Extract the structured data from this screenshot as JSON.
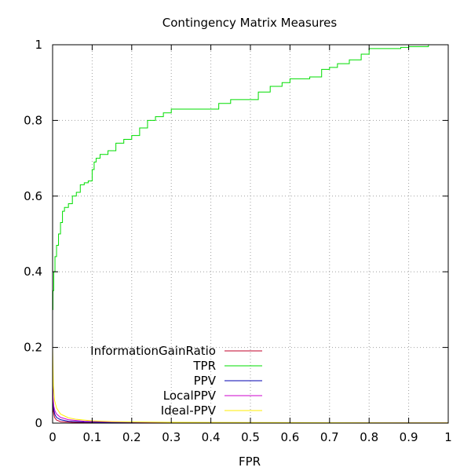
{
  "chart_data": {
    "type": "line",
    "title": "Contingency Matrix Measures",
    "xlabel": "FPR",
    "ylabel": "",
    "xlim": [
      0,
      1
    ],
    "ylim": [
      0,
      1
    ],
    "xticks": [
      0,
      0.1,
      0.2,
      0.3,
      0.4,
      0.5,
      0.6,
      0.7,
      0.8,
      0.9,
      1
    ],
    "xtick_labels": [
      "0",
      "0.1",
      "0.2",
      "0.3",
      "0.4",
      "0.5",
      "0.6",
      "0.7",
      "0.8",
      "0.9",
      "1"
    ],
    "yticks": [
      0,
      0.2,
      0.4,
      0.6,
      0.8,
      1
    ],
    "ytick_labels": [
      "0",
      "0.2",
      "0.4",
      "0.6",
      "0.8",
      "1"
    ],
    "grid": true,
    "legend_position": "bottom-left",
    "series": [
      {
        "name": "InformationGainRatio",
        "color": "#c0002a",
        "x": [
          0,
          0.002,
          0.005,
          0.01,
          0.02,
          0.05,
          0.1,
          0.3,
          0.6,
          1.0
        ],
        "y": [
          0.06,
          0.03,
          0.015,
          0.008,
          0.004,
          0.002,
          0.001,
          0.0005,
          0.0003,
          0.0002
        ]
      },
      {
        "name": "TPR",
        "color": "#00dd00",
        "x": [
          0,
          0.001,
          0.003,
          0.006,
          0.01,
          0.015,
          0.02,
          0.025,
          0.03,
          0.04,
          0.05,
          0.06,
          0.07,
          0.08,
          0.09,
          0.1,
          0.105,
          0.11,
          0.12,
          0.14,
          0.16,
          0.18,
          0.2,
          0.22,
          0.24,
          0.26,
          0.28,
          0.3,
          0.35,
          0.4,
          0.42,
          0.45,
          0.5,
          0.52,
          0.55,
          0.58,
          0.6,
          0.65,
          0.68,
          0.7,
          0.72,
          0.75,
          0.78,
          0.8,
          0.85,
          0.88,
          0.9,
          0.95
        ],
        "y": [
          0.3,
          0.35,
          0.4,
          0.44,
          0.47,
          0.5,
          0.53,
          0.56,
          0.57,
          0.58,
          0.6,
          0.61,
          0.63,
          0.635,
          0.64,
          0.67,
          0.69,
          0.7,
          0.71,
          0.72,
          0.74,
          0.75,
          0.76,
          0.78,
          0.8,
          0.81,
          0.82,
          0.83,
          0.83,
          0.83,
          0.845,
          0.855,
          0.855,
          0.875,
          0.89,
          0.9,
          0.91,
          0.915,
          0.935,
          0.94,
          0.95,
          0.96,
          0.975,
          0.99,
          0.99,
          0.993,
          0.995,
          1.0
        ]
      },
      {
        "name": "PPV",
        "color": "#0000b0",
        "x": [
          0,
          0.001,
          0.003,
          0.006,
          0.01,
          0.02,
          0.04,
          0.08,
          0.15,
          0.3,
          0.6,
          1.0
        ],
        "y": [
          0.12,
          0.06,
          0.035,
          0.022,
          0.015,
          0.009,
          0.005,
          0.003,
          0.002,
          0.001,
          0.0007,
          0.0005
        ]
      },
      {
        "name": "LocalPPV",
        "color": "#cc00cc",
        "x": [
          0,
          0.001,
          0.003,
          0.006,
          0.01,
          0.02,
          0.04,
          0.08,
          0.15,
          0.3,
          0.6,
          1.0
        ],
        "y": [
          0.11,
          0.07,
          0.045,
          0.032,
          0.024,
          0.015,
          0.009,
          0.005,
          0.003,
          0.0015,
          0.0008,
          0.0005
        ]
      },
      {
        "name": "Ideal-PPV",
        "color": "#ffee00",
        "x": [
          0,
          0.002,
          0.005,
          0.01,
          0.02,
          0.04,
          0.06,
          0.1,
          0.15,
          0.2,
          0.3,
          0.5,
          0.7,
          1.0
        ],
        "y": [
          0.2,
          0.1,
          0.06,
          0.04,
          0.024,
          0.014,
          0.01,
          0.006,
          0.004,
          0.003,
          0.002,
          0.0015,
          0.001,
          0.0008
        ]
      }
    ]
  }
}
